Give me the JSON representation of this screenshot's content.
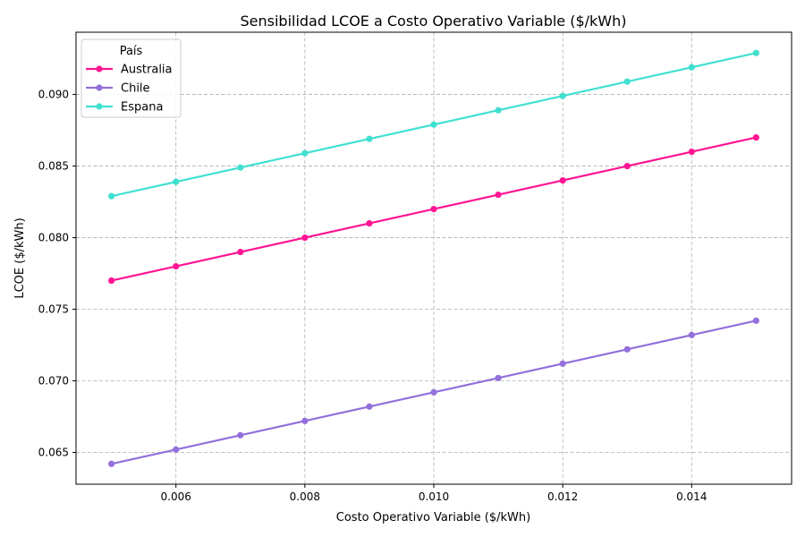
{
  "chart_data": {
    "type": "line",
    "title": "Sensibilidad LCOE a Costo Operativo Variable ($/kWh)",
    "xlabel": "Costo Operativo Variable ($/kWh)",
    "ylabel": "LCOE ($/kWh)",
    "x": [
      0.005,
      0.006,
      0.007,
      0.008,
      0.009,
      0.01,
      0.011,
      0.012,
      0.013,
      0.014,
      0.015
    ],
    "xlim": [
      0.00445,
      0.01555
    ],
    "ylim": [
      0.06278,
      0.09435
    ],
    "xticks": [
      0.006,
      0.008,
      0.01,
      0.012,
      0.014
    ],
    "xtick_labels": [
      "0.006",
      "0.008",
      "0.010",
      "0.012",
      "0.014"
    ],
    "yticks": [
      0.065,
      0.07,
      0.075,
      0.08,
      0.085,
      0.09
    ],
    "ytick_labels": [
      "0.065",
      "0.070",
      "0.075",
      "0.080",
      "0.085",
      "0.090"
    ],
    "grid": true,
    "legend": {
      "title": "País",
      "placement": "top-left"
    },
    "series": [
      {
        "name": "Australia",
        "color": "#ff1493",
        "values": [
          0.077,
          0.078,
          0.079,
          0.08,
          0.081,
          0.082,
          0.083,
          0.084,
          0.085,
          0.086,
          0.087
        ]
      },
      {
        "name": "Chile",
        "color": "#9370db",
        "values": [
          0.0642,
          0.0652,
          0.0662,
          0.0672,
          0.0682,
          0.0692,
          0.0702,
          0.0712,
          0.0722,
          0.0732,
          0.0742
        ]
      },
      {
        "name": "Espana",
        "color": "#40e0d0",
        "values": [
          0.0829,
          0.0839,
          0.0849,
          0.0859,
          0.0869,
          0.0879,
          0.0889,
          0.0899,
          0.0909,
          0.0919,
          0.0929
        ]
      }
    ]
  }
}
